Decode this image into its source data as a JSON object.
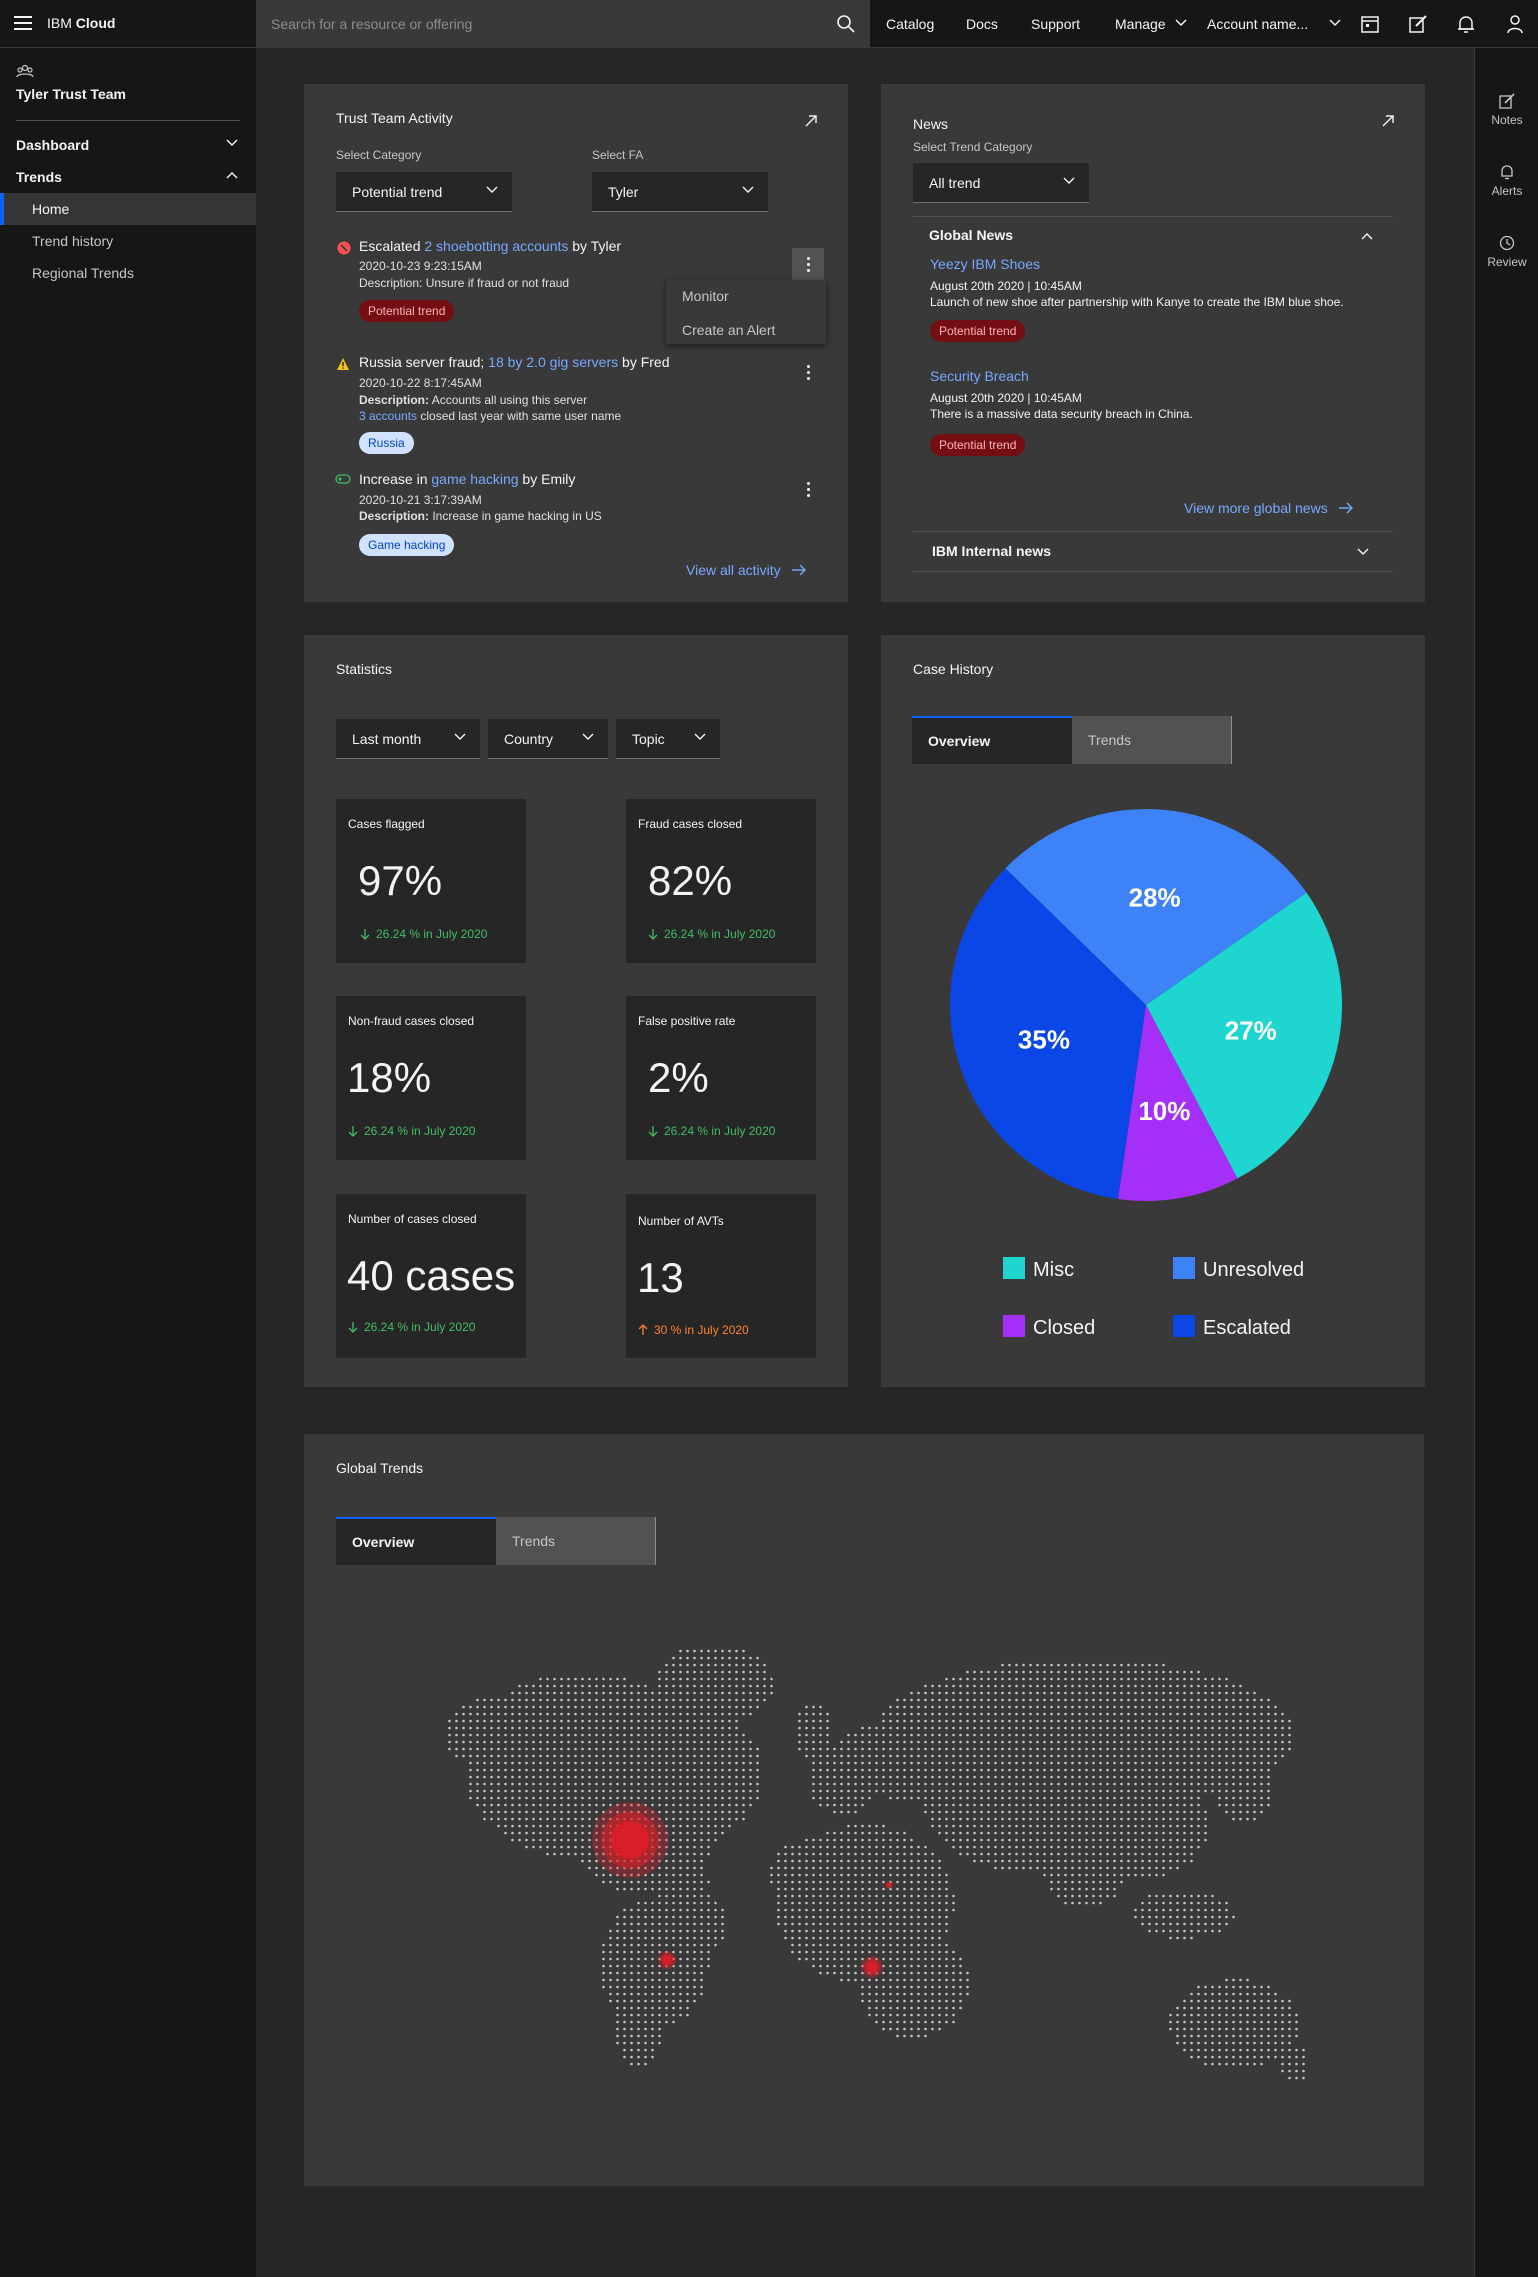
{
  "header": {
    "brand_prefix": "IBM",
    "brand_suffix": "Cloud",
    "search_placeholder": "Search for a resource or offering",
    "nav": [
      "Catalog",
      "Docs",
      "Support",
      "Manage",
      "Account name..."
    ]
  },
  "leftnav": {
    "team": "Tyler Trust Team",
    "dashboard": "Dashboard",
    "trends": "Trends",
    "links": [
      "Home",
      "Trend history",
      "Regional Trends"
    ]
  },
  "rightrail": {
    "items": [
      "Notes",
      "Alerts",
      "Review"
    ]
  },
  "activity": {
    "title": "Trust Team Activity",
    "category_label": "Select Category",
    "category_value": "Potential trend",
    "fa_label": "Select FA",
    "fa_value": "Tyler",
    "items": [
      {
        "pre": "Escalated ",
        "link": "2 shoebotting accounts",
        "post": " by Tyler",
        "time": "2020-10-23 9:23:15AM",
        "desc": "Description: Unsure if fraud or not fraud",
        "tag": "Potential trend"
      },
      {
        "pre": "Russia server fraud; ",
        "link": "18 by 2.0 gig servers",
        "post": " by Fred",
        "time": "2020-10-22 8:17:45AM",
        "desc_label": "Description:",
        "desc": " Accounts all using this server",
        "extra_link": "3 accounts",
        "extra": " closed last year with same user name",
        "tag": "Russia"
      },
      {
        "pre": "Increase in ",
        "link": "game hacking",
        "post": "  by Emily",
        "time": "2020-10-21 3:17:39AM",
        "desc_label": "Description:",
        "desc": " Increase in game hacking in US",
        "tag": "Game hacking"
      }
    ],
    "menu": [
      "Monitor",
      "Create an Alert"
    ],
    "view_all": "View all activity"
  },
  "news": {
    "title": "News",
    "category_label": "Select Trend Category",
    "category_value": "All trend",
    "global_heading": "Global News",
    "items": [
      {
        "title": "Yeezy IBM Shoes",
        "date": "August 20th 2020 | 10:45AM",
        "text": "Launch of new shoe after partnership with Kanye to create the IBM blue shoe.",
        "tag": "Potential trend"
      },
      {
        "title": "Security Breach",
        "date": "August 20th 2020 | 10:45AM",
        "text": "There is a massive data security breach in China.",
        "tag": "Potential trend"
      }
    ],
    "view_more": "View more global news",
    "internal_heading": "IBM Internal news"
  },
  "statistics": {
    "title": "Statistics",
    "filters": [
      "Last month",
      "Country",
      "Topic"
    ],
    "cards": [
      {
        "label": "Cases flagged",
        "value": "97%",
        "delta": "26.24 % in July 2020",
        "direction": "down"
      },
      {
        "label": "Fraud cases closed",
        "value": "82%",
        "delta": "26.24 % in July 2020",
        "direction": "down"
      },
      {
        "label": "Non-fraud cases closed",
        "value": "18%",
        "delta": "26.24 % in July 2020",
        "direction": "down"
      },
      {
        "label": "False positive rate",
        "value": "2%",
        "delta": "26.24 % in July 2020",
        "direction": "down"
      },
      {
        "label": "Number of cases closed",
        "value": "40 cases",
        "delta": "26.24 % in July 2020",
        "direction": "down"
      },
      {
        "label": "Number of AVTs",
        "value": "13",
        "delta": "30 % in July 2020",
        "direction": "up"
      }
    ]
  },
  "case_history": {
    "title": "Case History",
    "tabs": [
      "Overview",
      "Trends"
    ]
  },
  "chart_data": {
    "type": "pie",
    "categories": [
      "Misc",
      "Closed",
      "Escalated",
      "Unresolved"
    ],
    "values": [
      27,
      10,
      35,
      28
    ],
    "labels": [
      "27%",
      "10%",
      "35%",
      "28%"
    ],
    "colors": [
      "#1fd5d0",
      "#a430f7",
      "#0a47e6",
      "#3d82f7"
    ],
    "legend": [
      "Misc",
      "Unresolved",
      "Closed",
      "Escalated"
    ],
    "legend_colors": [
      "#1fd5d0",
      "#3d82f7",
      "#a430f7",
      "#0a47e6"
    ],
    "legend_placement": "bottom"
  },
  "global_trends": {
    "title": "Global Trends",
    "tabs": [
      "Overview",
      "Trends"
    ]
  },
  "colors": {
    "background": "#262626",
    "tile": "#393939",
    "accent": "#0f62fe",
    "link": "#78a9ff",
    "positive": "#42be65",
    "warning": "#ff832b"
  }
}
